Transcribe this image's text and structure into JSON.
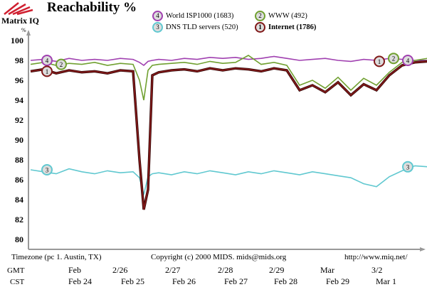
{
  "header": {
    "title": "Reachability %",
    "logo": "Matrix IQ"
  },
  "footer": {
    "timezone": "Timezone (pc 1. Austin, TX)",
    "copyright": "Copyright (c) 2000 MIDS. mids@mids.org",
    "url": "http://www.miq.net/"
  },
  "chart_data": {
    "type": "line",
    "title": "Reachability %",
    "ylabel": "%",
    "ylim": [
      79,
      100.5
    ],
    "yticks": [
      "100",
      "98",
      "96",
      "94",
      "92",
      "90",
      "88",
      "86",
      "84",
      "82",
      "80"
    ],
    "xaxis_rows": [
      {
        "label": "GMT",
        "ticks": [
          "Feb",
          "2/26",
          "2/27",
          "2/28",
          "2/29",
          "Mar",
          "3/2"
        ]
      },
      {
        "label": "CST",
        "ticks": [
          "Feb 24",
          "Feb 25",
          "Feb 26",
          "Feb 27",
          "Feb 28",
          "Feb 29",
          "Mar 1"
        ]
      }
    ],
    "grid": false,
    "legend_placement": "top",
    "x": [
      "02-23 00h",
      "02-23 06h",
      "02-23 12h",
      "02-23 18h",
      "02-24 00h",
      "02-24 06h",
      "02-24 12h",
      "02-24 18h",
      "02-25 00h",
      "02-25 03h",
      "02-25 05h",
      "02-25 07h",
      "02-25 09h",
      "02-25 12h",
      "02-25 18h",
      "02-26 00h",
      "02-26 06h",
      "02-26 12h",
      "02-26 18h",
      "02-27 00h",
      "02-27 06h",
      "02-27 12h",
      "02-27 18h",
      "02-28 00h",
      "02-28 06h",
      "02-28 12h",
      "02-28 18h",
      "02-29 00h",
      "02-29 06h",
      "02-29 12h",
      "02-29 18h",
      "03-01 00h",
      "03-01 06h",
      "03-01 12h",
      "03-01 18h"
    ],
    "series": [
      {
        "name": "World ISP1000 (1683)",
        "marker": "4",
        "color": "#a040b0",
        "values": [
          98.0,
          98.1,
          97.9,
          98.2,
          98.0,
          98.1,
          98.0,
          98.2,
          98.1,
          97.8,
          97.5,
          97.9,
          98.0,
          98.1,
          98.0,
          98.2,
          98.1,
          98.3,
          98.2,
          98.3,
          98.1,
          98.2,
          98.4,
          98.2,
          98.0,
          98.1,
          98.2,
          98.0,
          97.9,
          98.1,
          98.0,
          98.2,
          98.1,
          98.0,
          98.0
        ]
      },
      {
        "name": "WWW (492)",
        "marker": "2",
        "color": "#70a030",
        "values": [
          97.6,
          97.8,
          97.5,
          97.7,
          97.6,
          97.8,
          97.5,
          97.7,
          97.6,
          96.0,
          94.0,
          97.0,
          97.5,
          97.6,
          97.7,
          97.8,
          97.6,
          97.9,
          97.7,
          97.8,
          98.5,
          97.6,
          97.8,
          97.5,
          95.5,
          96.0,
          95.2,
          96.3,
          95.0,
          96.2,
          95.5,
          96.8,
          97.8,
          98.0,
          98.2
        ]
      },
      {
        "name": "DNS TLD servers (520)",
        "marker": "3",
        "color": "#60c8d0",
        "values": [
          87.0,
          86.8,
          86.6,
          87.1,
          86.8,
          86.6,
          86.9,
          86.7,
          86.8,
          86.2,
          84.5,
          86.3,
          86.6,
          86.7,
          86.5,
          86.8,
          86.6,
          86.9,
          86.7,
          86.5,
          86.8,
          86.6,
          86.9,
          86.7,
          86.5,
          86.8,
          86.6,
          86.4,
          86.2,
          85.6,
          85.3,
          86.3,
          86.9,
          87.4,
          87.3
        ]
      },
      {
        "name": "Internet (1786)",
        "marker": "1",
        "color": "#801818",
        "values": [
          96.9,
          97.1,
          96.7,
          97.0,
          96.8,
          96.9,
          96.7,
          97.0,
          96.9,
          88.0,
          83.0,
          85.0,
          96.5,
          96.8,
          97.0,
          97.1,
          96.9,
          97.2,
          97.0,
          97.2,
          97.1,
          96.9,
          97.2,
          97.0,
          95.0,
          95.5,
          94.8,
          95.8,
          94.5,
          95.6,
          95.0,
          96.5,
          97.5,
          97.8,
          97.9
        ]
      }
    ]
  }
}
